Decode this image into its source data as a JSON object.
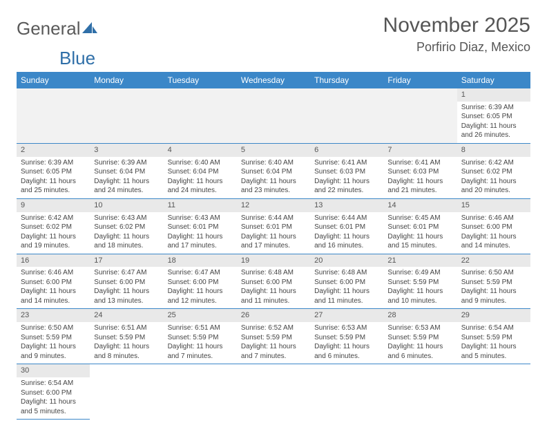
{
  "brand": {
    "part1": "General",
    "part2": "Blue"
  },
  "title": {
    "month": "November 2025",
    "location": "Porfirio Diaz, Mexico"
  },
  "colors": {
    "header_bg": "#3b87c8",
    "header_text": "#ffffff",
    "daynum_bg": "#e9e9e9",
    "row_divider": "#3b87c8",
    "logo_gray": "#5a5a5a",
    "logo_blue": "#2f6fa8"
  },
  "weekdays": [
    "Sunday",
    "Monday",
    "Tuesday",
    "Wednesday",
    "Thursday",
    "Friday",
    "Saturday"
  ],
  "leading_blanks": 6,
  "days": [
    {
      "n": 1,
      "sunrise": "6:39 AM",
      "sunset": "6:05 PM",
      "daylight": "11 hours and 26 minutes."
    },
    {
      "n": 2,
      "sunrise": "6:39 AM",
      "sunset": "6:05 PM",
      "daylight": "11 hours and 25 minutes."
    },
    {
      "n": 3,
      "sunrise": "6:39 AM",
      "sunset": "6:04 PM",
      "daylight": "11 hours and 24 minutes."
    },
    {
      "n": 4,
      "sunrise": "6:40 AM",
      "sunset": "6:04 PM",
      "daylight": "11 hours and 24 minutes."
    },
    {
      "n": 5,
      "sunrise": "6:40 AM",
      "sunset": "6:04 PM",
      "daylight": "11 hours and 23 minutes."
    },
    {
      "n": 6,
      "sunrise": "6:41 AM",
      "sunset": "6:03 PM",
      "daylight": "11 hours and 22 minutes."
    },
    {
      "n": 7,
      "sunrise": "6:41 AM",
      "sunset": "6:03 PM",
      "daylight": "11 hours and 21 minutes."
    },
    {
      "n": 8,
      "sunrise": "6:42 AM",
      "sunset": "6:02 PM",
      "daylight": "11 hours and 20 minutes."
    },
    {
      "n": 9,
      "sunrise": "6:42 AM",
      "sunset": "6:02 PM",
      "daylight": "11 hours and 19 minutes."
    },
    {
      "n": 10,
      "sunrise": "6:43 AM",
      "sunset": "6:02 PM",
      "daylight": "11 hours and 18 minutes."
    },
    {
      "n": 11,
      "sunrise": "6:43 AM",
      "sunset": "6:01 PM",
      "daylight": "11 hours and 17 minutes."
    },
    {
      "n": 12,
      "sunrise": "6:44 AM",
      "sunset": "6:01 PM",
      "daylight": "11 hours and 17 minutes."
    },
    {
      "n": 13,
      "sunrise": "6:44 AM",
      "sunset": "6:01 PM",
      "daylight": "11 hours and 16 minutes."
    },
    {
      "n": 14,
      "sunrise": "6:45 AM",
      "sunset": "6:01 PM",
      "daylight": "11 hours and 15 minutes."
    },
    {
      "n": 15,
      "sunrise": "6:46 AM",
      "sunset": "6:00 PM",
      "daylight": "11 hours and 14 minutes."
    },
    {
      "n": 16,
      "sunrise": "6:46 AM",
      "sunset": "6:00 PM",
      "daylight": "11 hours and 14 minutes."
    },
    {
      "n": 17,
      "sunrise": "6:47 AM",
      "sunset": "6:00 PM",
      "daylight": "11 hours and 13 minutes."
    },
    {
      "n": 18,
      "sunrise": "6:47 AM",
      "sunset": "6:00 PM",
      "daylight": "11 hours and 12 minutes."
    },
    {
      "n": 19,
      "sunrise": "6:48 AM",
      "sunset": "6:00 PM",
      "daylight": "11 hours and 11 minutes."
    },
    {
      "n": 20,
      "sunrise": "6:48 AM",
      "sunset": "6:00 PM",
      "daylight": "11 hours and 11 minutes."
    },
    {
      "n": 21,
      "sunrise": "6:49 AM",
      "sunset": "5:59 PM",
      "daylight": "11 hours and 10 minutes."
    },
    {
      "n": 22,
      "sunrise": "6:50 AM",
      "sunset": "5:59 PM",
      "daylight": "11 hours and 9 minutes."
    },
    {
      "n": 23,
      "sunrise": "6:50 AM",
      "sunset": "5:59 PM",
      "daylight": "11 hours and 9 minutes."
    },
    {
      "n": 24,
      "sunrise": "6:51 AM",
      "sunset": "5:59 PM",
      "daylight": "11 hours and 8 minutes."
    },
    {
      "n": 25,
      "sunrise": "6:51 AM",
      "sunset": "5:59 PM",
      "daylight": "11 hours and 7 minutes."
    },
    {
      "n": 26,
      "sunrise": "6:52 AM",
      "sunset": "5:59 PM",
      "daylight": "11 hours and 7 minutes."
    },
    {
      "n": 27,
      "sunrise": "6:53 AM",
      "sunset": "5:59 PM",
      "daylight": "11 hours and 6 minutes."
    },
    {
      "n": 28,
      "sunrise": "6:53 AM",
      "sunset": "5:59 PM",
      "daylight": "11 hours and 6 minutes."
    },
    {
      "n": 29,
      "sunrise": "6:54 AM",
      "sunset": "5:59 PM",
      "daylight": "11 hours and 5 minutes."
    },
    {
      "n": 30,
      "sunrise": "6:54 AM",
      "sunset": "6:00 PM",
      "daylight": "11 hours and 5 minutes."
    }
  ],
  "labels": {
    "sunrise": "Sunrise:",
    "sunset": "Sunset:",
    "daylight": "Daylight:"
  }
}
